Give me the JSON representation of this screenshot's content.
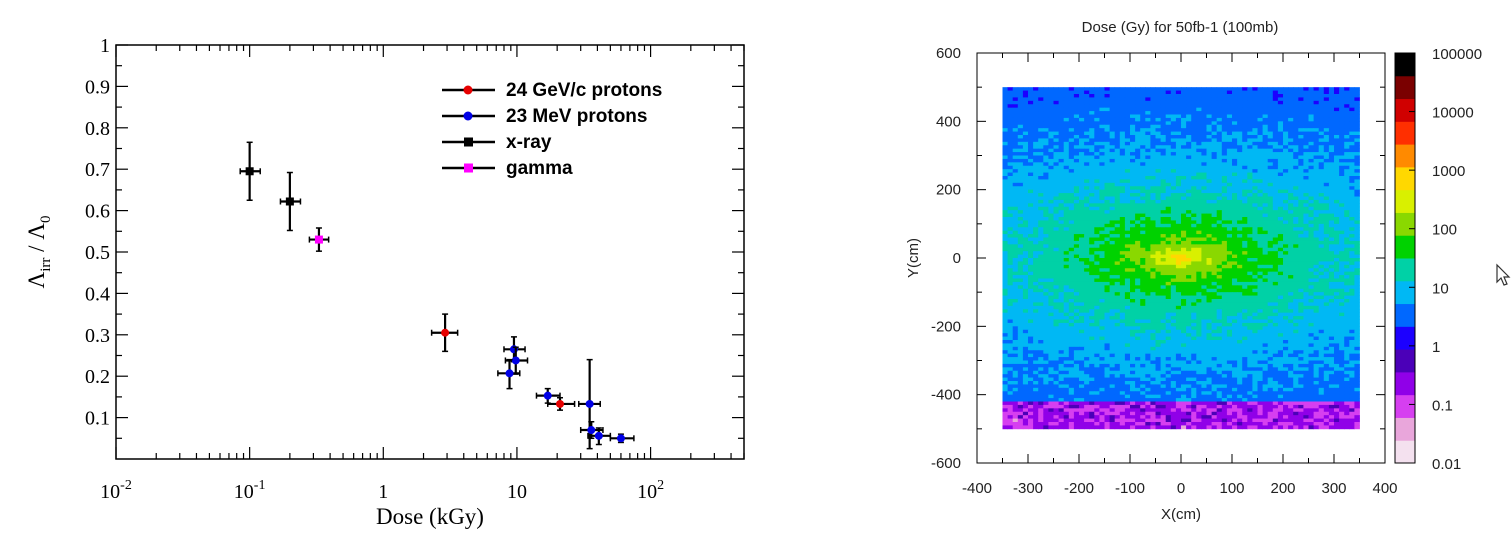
{
  "chart_data": [
    {
      "type": "scatter",
      "xscale": "log",
      "xlim": [
        0.01,
        500
      ],
      "ylim": [
        0,
        1
      ],
      "xlabel": "Dose (kGy)",
      "ylabel_main": "Λ",
      "ylabel_sub1": "irr",
      "ylabel_sep": " / ",
      "ylabel_main2": "Λ",
      "ylabel_sub2": "0",
      "x_ticks": [
        {
          "value": 0.01,
          "base": "10",
          "exp": "-2"
        },
        {
          "value": 0.1,
          "base": "10",
          "exp": "-1"
        },
        {
          "value": 1,
          "base": "1",
          "exp": ""
        },
        {
          "value": 10,
          "base": "10",
          "exp": ""
        },
        {
          "value": 100,
          "base": "10",
          "exp": "2"
        }
      ],
      "y_ticks": [
        {
          "value": 0.1,
          "label": "0.1"
        },
        {
          "value": 0.2,
          "label": "0.2"
        },
        {
          "value": 0.3,
          "label": "0.3"
        },
        {
          "value": 0.4,
          "label": "0.4"
        },
        {
          "value": 0.5,
          "label": "0.5"
        },
        {
          "value": 0.6,
          "label": "0.6"
        },
        {
          "value": 0.7,
          "label": "0.7"
        },
        {
          "value": 0.8,
          "label": "0.8"
        },
        {
          "value": 0.9,
          "label": "0.9"
        },
        {
          "value": 1.0,
          "label": "1"
        }
      ],
      "series": [
        {
          "name": "24 GeV/c protons",
          "color": "#e60000",
          "marker": "circle",
          "points": [
            {
              "x": 2.9,
              "y": 0.305,
              "xerr": [
                2.3,
                3.6
              ],
              "yerr": [
                0.26,
                0.35
              ]
            },
            {
              "x": 21,
              "y": 0.133,
              "xerr": [
                17,
                27
              ],
              "yerr": [
                0.118,
                0.148
              ]
            }
          ]
        },
        {
          "name": "23 MeV protons",
          "color": "#0000e6",
          "marker": "circle",
          "points": [
            {
              "x": 9.5,
              "y": 0.265,
              "xerr": [
                8,
                11.5
              ],
              "yerr": [
                0.235,
                0.295
              ]
            },
            {
              "x": 9.8,
              "y": 0.238,
              "xerr": [
                8.2,
                12
              ],
              "yerr": [
                0.205,
                0.27
              ]
            },
            {
              "x": 8.8,
              "y": 0.207,
              "xerr": [
                7.2,
                10.5
              ],
              "yerr": [
                0.17,
                0.24
              ]
            },
            {
              "x": 17,
              "y": 0.153,
              "xerr": [
                14,
                21
              ],
              "yerr": [
                0.135,
                0.17
              ]
            },
            {
              "x": 35,
              "y": 0.133,
              "xerr": [
                29,
                42
              ],
              "yerr": [
                0.025,
                0.24
              ]
            },
            {
              "x": 36,
              "y": 0.07,
              "xerr": [
                30,
                44
              ],
              "yerr": [
                0.05,
                0.09
              ]
            },
            {
              "x": 41,
              "y": 0.056,
              "xerr": [
                34,
                50
              ],
              "yerr": [
                0.035,
                0.075
              ]
            },
            {
              "x": 60,
              "y": 0.05,
              "xerr": [
                50,
                75
              ],
              "yerr": [
                0.04,
                0.06
              ]
            }
          ]
        },
        {
          "name": "x-ray",
          "color": "#000000",
          "marker": "square",
          "points": [
            {
              "x": 0.1,
              "y": 0.695,
              "xerr": [
                0.085,
                0.12
              ],
              "yerr": [
                0.625,
                0.765
              ]
            },
            {
              "x": 0.2,
              "y": 0.622,
              "xerr": [
                0.17,
                0.24
              ],
              "yerr": [
                0.552,
                0.692
              ]
            }
          ]
        },
        {
          "name": "gamma",
          "color": "#ff00ff",
          "marker": "square",
          "points": [
            {
              "x": 0.33,
              "y": 0.53,
              "xerr": [
                0.28,
                0.39
              ],
              "yerr": [
                0.502,
                0.558
              ]
            }
          ]
        }
      ],
      "legend_position": "top-right"
    },
    {
      "type": "heatmap",
      "title": "Dose (Gy) for 50fb-1 (100mb)",
      "xlabel": "X(cm)",
      "ylabel": "Y(cm)",
      "xlim": [
        -400,
        400
      ],
      "ylim": [
        -600,
        600
      ],
      "x_ticks": [
        "-400",
        "-300",
        "-200",
        "-100",
        "0",
        "100",
        "200",
        "300",
        "400"
      ],
      "y_ticks": [
        "600",
        "400",
        "200",
        "0",
        "-200",
        "-400",
        "-600"
      ],
      "data_extent": {
        "x": [
          -350,
          350
        ],
        "y": [
          -500,
          500
        ]
      },
      "colorbar_scale": "log",
      "colorbar_range": [
        0.01,
        100000
      ],
      "colorbar_labels": [
        "100000",
        "10000",
        "1000",
        "100",
        "10",
        "1",
        "0.1",
        "0.01"
      ],
      "colorbar_colors": [
        "#f4e1ef",
        "#e9a6db",
        "#d63ff0",
        "#9000e8",
        "#4b00b8",
        "#1c00ff",
        "#0068ff",
        "#00b8f4",
        "#00d1a6",
        "#00d200",
        "#8ad800",
        "#d9f000",
        "#ffd800",
        "#ff8a00",
        "#ff2f00",
        "#d00000",
        "#7a0000",
        "#000000"
      ],
      "peak_dose_center": 2000,
      "low_band_y_below": -415
    }
  ]
}
